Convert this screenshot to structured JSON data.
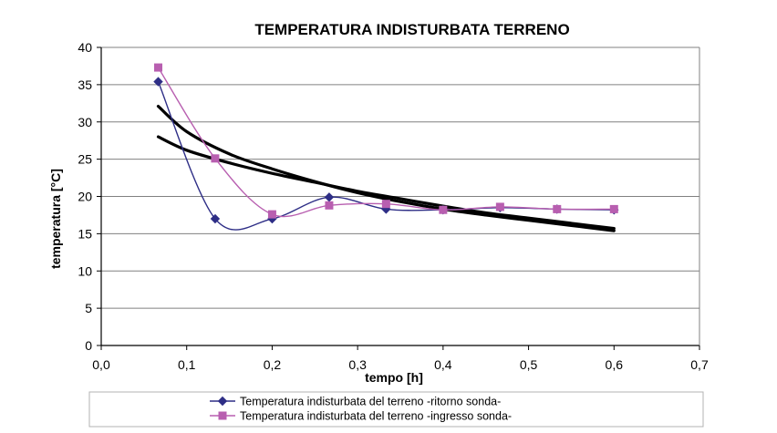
{
  "chart_data": {
    "type": "line",
    "title": "TEMPERATURA INDISTURBATA TERRENO",
    "xlabel": "tempo [h]",
    "ylabel": "temperatura [°C]",
    "xlim": [
      0,
      0.7
    ],
    "ylim": [
      0,
      40
    ],
    "x_ticks": [
      "0,0",
      "0,1",
      "0,2",
      "0,3",
      "0,4",
      "0,5",
      "0,6",
      "0,7"
    ],
    "y_ticks": [
      "0",
      "5",
      "10",
      "15",
      "20",
      "25",
      "30",
      "35",
      "40"
    ],
    "grid": "horizontal",
    "legend_position": "bottom",
    "series": [
      {
        "name": "Temperatura indisturbata del terreno -ritorno sonda-",
        "color": "#2E2E86",
        "marker": "diamond",
        "x": [
          0.0667,
          0.1333,
          0.2,
          0.2667,
          0.3333,
          0.4,
          0.4667,
          0.5333,
          0.6
        ],
        "y": [
          35.4,
          17.0,
          17.0,
          19.9,
          18.3,
          18.2,
          18.5,
          18.3,
          18.2
        ]
      },
      {
        "name": "Temperatura indisturbata del terreno -ingresso sonda-",
        "color": "#B85FB0",
        "marker": "square",
        "x": [
          0.0667,
          0.1333,
          0.2,
          0.2667,
          0.3333,
          0.4,
          0.4667,
          0.5333,
          0.6
        ],
        "y": [
          37.3,
          25.1,
          17.6,
          18.8,
          19.0,
          18.2,
          18.6,
          18.3,
          18.3
        ]
      }
    ],
    "trendlines": [
      {
        "color": "#000000",
        "x": [
          0.0667,
          0.1,
          0.15,
          0.2,
          0.25,
          0.3,
          0.35,
          0.4,
          0.45,
          0.5,
          0.55,
          0.6
        ],
        "y": [
          32.1,
          28.7,
          25.7,
          23.7,
          22.0,
          20.5,
          19.3,
          18.3,
          17.5,
          16.8,
          16.1,
          15.4
        ]
      },
      {
        "color": "#000000",
        "x": [
          0.0667,
          0.1,
          0.15,
          0.2,
          0.25,
          0.3,
          0.35,
          0.4,
          0.45,
          0.5,
          0.55,
          0.6
        ],
        "y": [
          28.0,
          26.2,
          24.5,
          23.1,
          21.9,
          20.7,
          19.7,
          18.7,
          17.8,
          17.1,
          16.4,
          15.7
        ]
      }
    ]
  }
}
